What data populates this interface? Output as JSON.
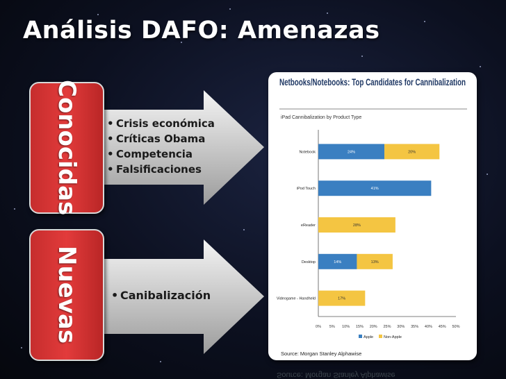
{
  "slide": {
    "title": "Análisis DAFO: Amenazas"
  },
  "groups": {
    "known": {
      "label": "Conocidas",
      "bullets": [
        "Crisis económica",
        "Críticas Obama",
        "Competencia",
        "Falsificaciones"
      ]
    },
    "new": {
      "label": "Nuevas",
      "bullets": [
        "Canibalización"
      ]
    }
  },
  "chart_data": {
    "type": "bar",
    "stacked": true,
    "orientation": "horizontal",
    "title": "Netbooks/Notebooks: Top Candidates for Cannibalization",
    "subtitle": "iPad Cannibalization by Product Type",
    "categories": [
      "Notebook",
      "iPod Touch",
      "eReader",
      "Desktop",
      "Videogame - Handheld"
    ],
    "series": [
      {
        "name": "Apple",
        "color": "#3a7fc1",
        "values": [
          24,
          41,
          0,
          14,
          0
        ]
      },
      {
        "name": "Non-Apple",
        "color": "#f4c542",
        "values": [
          20,
          0,
          28,
          13,
          17
        ]
      }
    ],
    "xlim": [
      0,
      50
    ],
    "xticks": [
      "0%",
      "5%",
      "10%",
      "15%",
      "20%",
      "25%",
      "30%",
      "35%",
      "40%",
      "45%",
      "50%"
    ],
    "legend": "bottom",
    "source": "Source: Morgan Stanley Alphawise"
  }
}
